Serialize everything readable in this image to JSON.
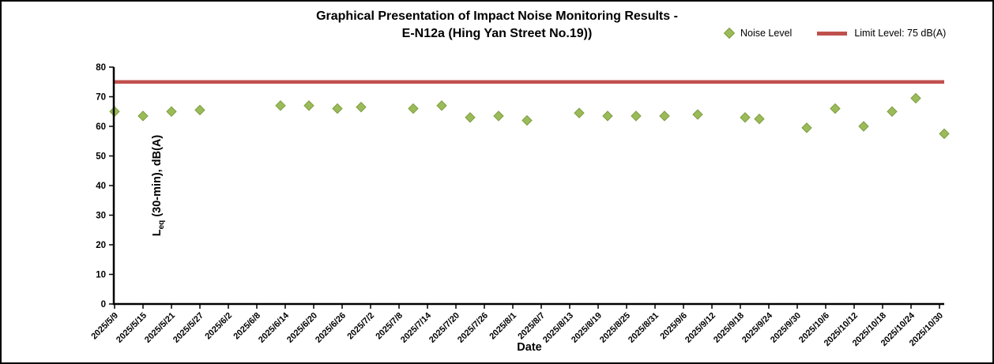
{
  "chart_data": {
    "type": "scatter",
    "title_line1": "Graphical Presentation of Impact Noise Monitoring Results -",
    "title_line2": "E-N12a (Hing Yan Street No.19))",
    "xlabel": "Date",
    "ylabel": "Leq (30-min), dB(A)",
    "ylabel_parts": {
      "main": "L",
      "sub": "eq",
      "rest": " (30-min), dB(A)"
    },
    "ylim": [
      0,
      80
    ],
    "y_ticks": [
      0,
      10,
      20,
      30,
      40,
      50,
      60,
      70,
      80
    ],
    "x_range": [
      "2025/5/9",
      "2025/10/31"
    ],
    "x_tick_labels": [
      "2025/5/9",
      "2025/5/15",
      "2025/5/21",
      "2025/5/27",
      "2025/6/2",
      "2025/6/8",
      "2025/6/14",
      "2025/6/20",
      "2025/6/26",
      "2025/7/2",
      "2025/7/8",
      "2025/7/14",
      "2025/7/20",
      "2025/7/26",
      "2025/8/1",
      "2025/8/7",
      "2025/8/13",
      "2025/8/19",
      "2025/8/25",
      "2025/8/31",
      "2025/9/6",
      "2025/9/12",
      "2025/9/18",
      "2025/9/24",
      "2025/9/30",
      "2025/10/6",
      "2025/10/12",
      "2025/10/18",
      "2025/10/24",
      "2025/10/30"
    ],
    "grid": false,
    "legend_position": "top-right",
    "axis_color": "#000000",
    "series": [
      {
        "name": "Noise Level",
        "type": "scatter",
        "marker": "diamond",
        "color": "#9BBB59",
        "marker_edge_color": "#7E9E43",
        "points": [
          {
            "x": "2025/5/9",
            "y": 65
          },
          {
            "x": "2025/5/15",
            "y": 63.5
          },
          {
            "x": "2025/5/21",
            "y": 65
          },
          {
            "x": "2025/5/27",
            "y": 65.5
          },
          {
            "x": "2025/6/13",
            "y": 67
          },
          {
            "x": "2025/6/19",
            "y": 67
          },
          {
            "x": "2025/6/25",
            "y": 66
          },
          {
            "x": "2025/6/30",
            "y": 66.5
          },
          {
            "x": "2025/7/11",
            "y": 66
          },
          {
            "x": "2025/7/17",
            "y": 67
          },
          {
            "x": "2025/7/23",
            "y": 63
          },
          {
            "x": "2025/7/29",
            "y": 63.5
          },
          {
            "x": "2025/8/4",
            "y": 62
          },
          {
            "x": "2025/8/15",
            "y": 64.5
          },
          {
            "x": "2025/8/21",
            "y": 63.5
          },
          {
            "x": "2025/8/27",
            "y": 63.5
          },
          {
            "x": "2025/9/2",
            "y": 63.5
          },
          {
            "x": "2025/9/9",
            "y": 64
          },
          {
            "x": "2025/9/19",
            "y": 63
          },
          {
            "x": "2025/9/22",
            "y": 62.5
          },
          {
            "x": "2025/10/2",
            "y": 59.5
          },
          {
            "x": "2025/10/8",
            "y": 66
          },
          {
            "x": "2025/10/14",
            "y": 60
          },
          {
            "x": "2025/10/20",
            "y": 65
          },
          {
            "x": "2025/10/25",
            "y": 69.5
          },
          {
            "x": "2025/10/31",
            "y": 57.5
          }
        ]
      },
      {
        "name": "Limit Level: 75 dB(A)",
        "type": "line",
        "color": "#C0504D",
        "value": 75
      }
    ]
  }
}
